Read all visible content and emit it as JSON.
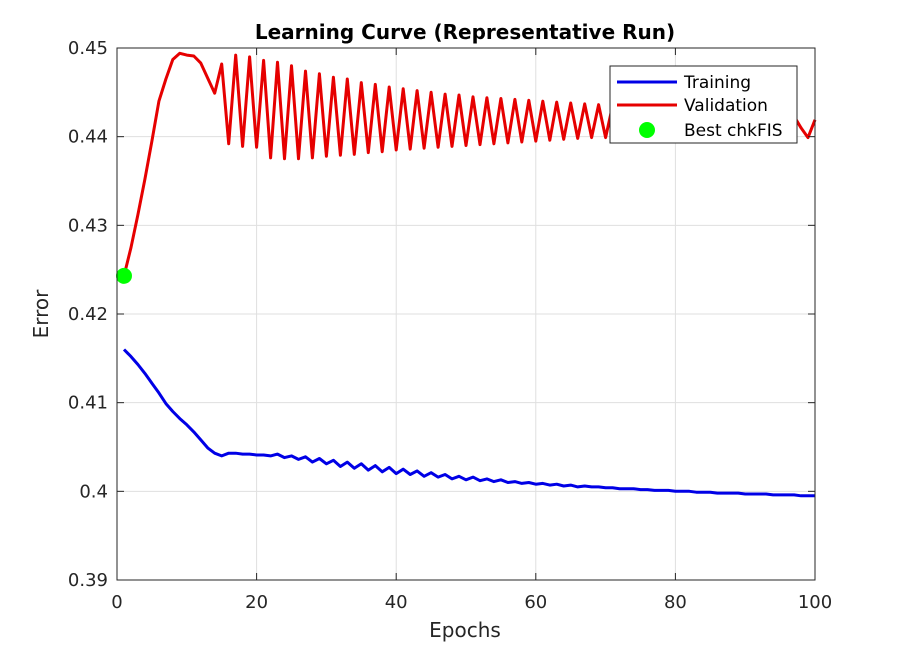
{
  "chart_data": {
    "type": "line",
    "title": "Learning Curve (Representative Run)",
    "xlabel": "Epochs",
    "ylabel": "Error",
    "xlim": [
      0,
      100
    ],
    "ylim": [
      0.39,
      0.45
    ],
    "xticks": [
      0,
      20,
      40,
      60,
      80,
      100
    ],
    "yticks": [
      0.39,
      0.4,
      0.41,
      0.42,
      0.43,
      0.44,
      0.45
    ],
    "xtick_labels": [
      "0",
      "20",
      "40",
      "60",
      "80",
      "100"
    ],
    "ytick_labels": [
      "0.39",
      "0.4",
      "0.41",
      "0.42",
      "0.43",
      "0.44",
      "0.45"
    ],
    "grid": true,
    "legend_position": "top-right",
    "series": [
      {
        "name": "Training",
        "color": "#0000e6",
        "x": [
          1,
          2,
          3,
          4,
          5,
          6,
          7,
          8,
          9,
          10,
          11,
          12,
          13,
          14,
          15,
          16,
          17,
          18,
          19,
          20,
          21,
          22,
          23,
          24,
          25,
          26,
          27,
          28,
          29,
          30,
          31,
          32,
          33,
          34,
          35,
          36,
          37,
          38,
          39,
          40,
          41,
          42,
          43,
          44,
          45,
          46,
          47,
          48,
          49,
          50,
          51,
          52,
          53,
          54,
          55,
          56,
          57,
          58,
          59,
          60,
          61,
          62,
          63,
          64,
          65,
          66,
          67,
          68,
          69,
          70,
          71,
          72,
          73,
          74,
          75,
          76,
          77,
          78,
          79,
          80,
          81,
          82,
          83,
          84,
          85,
          86,
          87,
          88,
          89,
          90,
          91,
          92,
          93,
          94,
          95,
          96,
          97,
          98,
          99,
          100
        ],
        "y": [
          0.416,
          0.4152,
          0.4143,
          0.4133,
          0.4122,
          0.4111,
          0.4099,
          0.409,
          0.4082,
          0.4075,
          0.4067,
          0.4058,
          0.4049,
          0.4043,
          0.404,
          0.4043,
          0.4043,
          0.4042,
          0.4042,
          0.4041,
          0.4041,
          0.404,
          0.4042,
          0.4038,
          0.404,
          0.4036,
          0.4039,
          0.4033,
          0.4037,
          0.4031,
          0.4035,
          0.4028,
          0.4033,
          0.4026,
          0.4031,
          0.4024,
          0.4029,
          0.4022,
          0.4027,
          0.402,
          0.4025,
          0.4019,
          0.4023,
          0.4017,
          0.4021,
          0.4016,
          0.4019,
          0.4014,
          0.4017,
          0.4013,
          0.4016,
          0.4012,
          0.4014,
          0.4011,
          0.4013,
          0.401,
          0.4011,
          0.4009,
          0.401,
          0.4008,
          0.4009,
          0.4007,
          0.4008,
          0.4006,
          0.4007,
          0.4005,
          0.4006,
          0.4005,
          0.4005,
          0.4004,
          0.4004,
          0.4003,
          0.4003,
          0.4003,
          0.4002,
          0.4002,
          0.4001,
          0.4001,
          0.4001,
          0.4,
          0.4,
          0.4,
          0.3999,
          0.3999,
          0.3999,
          0.3998,
          0.3998,
          0.3998,
          0.3998,
          0.3997,
          0.3997,
          0.3997,
          0.3997,
          0.3996,
          0.3996,
          0.3996,
          0.3996,
          0.3995,
          0.3995,
          0.3995
        ]
      },
      {
        "name": "Validation",
        "color": "#e60000",
        "x": [
          1,
          2,
          3,
          4,
          5,
          6,
          7,
          8,
          9,
          10,
          11,
          12,
          13,
          14,
          15,
          16,
          17,
          18,
          19,
          20,
          21,
          22,
          23,
          24,
          25,
          26,
          27,
          28,
          29,
          30,
          31,
          32,
          33,
          34,
          35,
          36,
          37,
          38,
          39,
          40,
          41,
          42,
          43,
          44,
          45,
          46,
          47,
          48,
          49,
          50,
          51,
          52,
          53,
          54,
          55,
          56,
          57,
          58,
          59,
          60,
          61,
          62,
          63,
          64,
          65,
          66,
          67,
          68,
          69,
          70,
          71,
          72,
          73,
          74,
          75,
          76,
          77,
          78,
          79,
          80,
          81,
          82,
          83,
          84,
          85,
          86,
          87,
          88,
          89,
          90,
          91,
          92,
          93,
          94,
          95,
          96,
          97,
          98,
          99,
          100
        ],
        "y": [
          0.4243,
          0.4275,
          0.4312,
          0.4352,
          0.4395,
          0.444,
          0.4465,
          0.4487,
          0.4494,
          0.4492,
          0.4491,
          0.4483,
          0.4466,
          0.4449,
          0.4482,
          0.4392,
          0.4492,
          0.4389,
          0.449,
          0.4388,
          0.4486,
          0.4376,
          0.4484,
          0.4375,
          0.448,
          0.4375,
          0.4474,
          0.4376,
          0.4471,
          0.4378,
          0.4467,
          0.4379,
          0.4465,
          0.438,
          0.4461,
          0.4382,
          0.4459,
          0.4383,
          0.4456,
          0.4385,
          0.4454,
          0.4386,
          0.4452,
          0.4387,
          0.445,
          0.4388,
          0.4448,
          0.4389,
          0.4447,
          0.439,
          0.4445,
          0.4391,
          0.4444,
          0.4392,
          0.4443,
          0.4393,
          0.4442,
          0.4394,
          0.4441,
          0.4395,
          0.444,
          0.4396,
          0.4439,
          0.4397,
          0.4438,
          0.4398,
          0.4437,
          0.4399,
          0.4436,
          0.4399,
          0.4435,
          0.44,
          0.4434,
          0.4401,
          0.4433,
          0.4402,
          0.4432,
          0.4402,
          0.4431,
          0.4403,
          0.4431,
          0.4404,
          0.443,
          0.4404,
          0.4429,
          0.4405,
          0.4428,
          0.4406,
          0.4427,
          0.4407,
          0.4426,
          0.4407,
          0.4425,
          0.4408,
          0.4424,
          0.4409,
          0.4423,
          0.441,
          0.4399,
          0.4419
        ]
      }
    ],
    "markers": [
      {
        "name": "Best chkFIS",
        "x": 1,
        "y": 0.4243,
        "color": "#00ff00"
      }
    ]
  }
}
